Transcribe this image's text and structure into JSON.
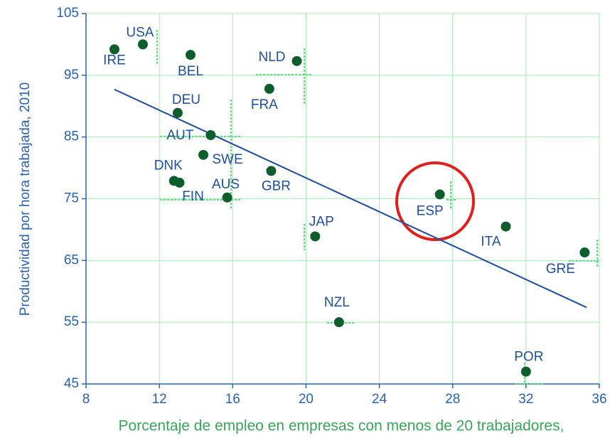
{
  "chart_data": {
    "type": "scatter",
    "xlabel": "Porcentaje de empleo en empresas con menos de 20 trabajadores,",
    "ylabel": "Productividad por hora trabajada, 2010",
    "labels": [
      "IRE",
      "USA",
      "BEL",
      "NLD",
      "FRA",
      "DEU",
      "AUT",
      "SWE",
      "GBR",
      "DNK",
      "FIN",
      "AUS",
      "ESP",
      "JAP",
      "ITA",
      "GRE",
      "NZL",
      "POR"
    ],
    "x": [
      9.55,
      11.1,
      13.7,
      19.5,
      18.0,
      13.0,
      14.8,
      14.4,
      18.1,
      12.8,
      13.1,
      15.7,
      27.3,
      20.5,
      30.9,
      35.2,
      21.8,
      32.0
    ],
    "y": [
      99.2,
      100.0,
      98.3,
      97.3,
      92.8,
      88.9,
      85.3,
      82.1,
      79.5,
      77.9,
      77.6,
      75.2,
      75.7,
      68.9,
      70.5,
      66.3,
      55.0,
      47.0
    ],
    "color": "#0d5e2c",
    "trend": {
      "x": [
        9.55,
        35.3
      ],
      "y": [
        92.7,
        57.4
      ],
      "color": "#1f4e9a"
    },
    "xlim": [
      8,
      36
    ],
    "xticks": [
      8,
      12,
      16,
      20,
      24,
      28,
      32,
      36
    ],
    "ylim": [
      45,
      105
    ],
    "yticks": [
      45,
      55,
      65,
      75,
      85,
      95,
      105
    ],
    "grid": true
  }
}
